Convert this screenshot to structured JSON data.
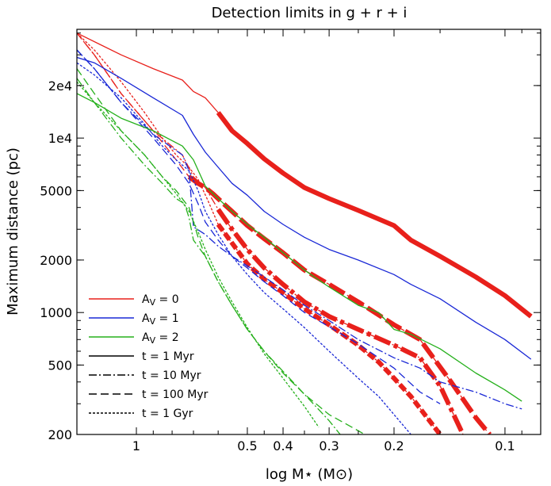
{
  "chart_data": {
    "type": "line",
    "title": "Detection limits in g + r + i",
    "xlabel": "log M⋆ (M⊙)",
    "ylabel": "Maximum distance (pc)",
    "xscale": "log",
    "xreversed": true,
    "yscale": "log",
    "xlim": [
      1.45,
      0.08
    ],
    "ylim": [
      200,
      42000
    ],
    "xticks": [
      {
        "value": 1.0,
        "label": "1"
      },
      {
        "value": 0.5,
        "label": "0.5"
      },
      {
        "value": 0.4,
        "label": "0.4"
      },
      {
        "value": 0.3,
        "label": "0.3"
      },
      {
        "value": 0.2,
        "label": "0.2"
      },
      {
        "value": 0.1,
        "label": "0.1"
      }
    ],
    "xminor": [
      0.9,
      0.8,
      0.7,
      0.6,
      0.45,
      0.35,
      0.25,
      0.15,
      0.09
    ],
    "yticks": [
      {
        "value": 200,
        "label": "200"
      },
      {
        "value": 500,
        "label": "500"
      },
      {
        "value": 1000,
        "label": "1000"
      },
      {
        "value": 2000,
        "label": "2000"
      },
      {
        "value": 5000,
        "label": "5000"
      },
      {
        "value": 10000,
        "label": "1e4"
      },
      {
        "value": 20000,
        "label": "2e4"
      }
    ],
    "legend_position": "bottom-left",
    "legend": [
      {
        "label": "A_V = 0",
        "color": "#e8201b",
        "style": "solid"
      },
      {
        "label": "A_V = 1",
        "color": "#1a28d6",
        "style": "solid"
      },
      {
        "label": "A_V = 2",
        "color": "#26b01c",
        "style": "solid"
      },
      {
        "label": "t = 1 Myr",
        "color": "#000000",
        "style": "solid"
      },
      {
        "label": "t = 10 Myr",
        "color": "#000000",
        "style": "dashdot"
      },
      {
        "label": "t = 100 Myr",
        "color": "#000000",
        "style": "dashed"
      },
      {
        "label": "t = 1 Gyr",
        "color": "#000000",
        "style": "dotted"
      }
    ],
    "series": [
      {
        "av": 0,
        "age": "1 Myr",
        "color": "#e8201b",
        "style": "solid",
        "x": [
          1.45,
          1.1,
          0.9,
          0.75,
          0.7,
          0.65,
          0.6,
          0.55,
          0.5,
          0.45,
          0.4,
          0.35,
          0.3,
          0.25,
          0.2,
          0.18,
          0.15,
          0.12,
          0.1,
          0.085
        ],
        "y": [
          40000,
          30000,
          25000,
          21500,
          18500,
          17000,
          14000,
          11000,
          9300,
          7600,
          6300,
          5200,
          4500,
          3850,
          3150,
          2600,
          2100,
          1600,
          1250,
          950
        ],
        "thick_from": 0.62
      },
      {
        "av": 0,
        "age": "10 Myr",
        "color": "#e8201b",
        "style": "dashdot",
        "x": [
          1.45,
          1.3,
          1.1,
          0.9,
          0.75,
          0.7,
          0.65,
          0.6,
          0.55,
          0.5,
          0.45,
          0.4,
          0.35,
          0.3,
          0.25,
          0.2,
          0.17,
          0.15,
          0.13
        ],
        "y": [
          40000,
          30000,
          18000,
          11000,
          8000,
          6000,
          5200,
          3900,
          3000,
          2300,
          1800,
          1450,
          1150,
          950,
          800,
          650,
          550,
          380,
          200
        ],
        "thick_from": 0.6
      },
      {
        "av": 0,
        "age": "100 Myr",
        "color": "#e8201b",
        "style": "dashed",
        "x": [
          1.45,
          1.3,
          1.1,
          0.9,
          0.78,
          0.72,
          0.68,
          0.65,
          0.62,
          0.58,
          0.55,
          0.5,
          0.45,
          0.4,
          0.35,
          0.3,
          0.25,
          0.2,
          0.17,
          0.14,
          0.12,
          0.11
        ],
        "y": [
          40000,
          30000,
          18000,
          11000,
          7500,
          6000,
          5500,
          5200,
          4800,
          4200,
          3800,
          3150,
          2650,
          2200,
          1750,
          1450,
          1150,
          850,
          700,
          400,
          250,
          200
        ],
        "thick_from": 0.72
      },
      {
        "av": 0,
        "age": "1 Gyr",
        "color": "#e8201b",
        "style": "dotted",
        "x": [
          1.45,
          1.3,
          1.1,
          0.95,
          0.85,
          0.78,
          0.72,
          0.68,
          0.64,
          0.6,
          0.55,
          0.5,
          0.45,
          0.4,
          0.35,
          0.3,
          0.25,
          0.22,
          0.2,
          0.18,
          0.165,
          0.15
        ],
        "y": [
          40000,
          32000,
          21000,
          14000,
          10000,
          8000,
          6800,
          5800,
          4400,
          3200,
          2500,
          1900,
          1550,
          1300,
          1050,
          850,
          650,
          520,
          420,
          330,
          260,
          200
        ],
        "thick_from": 0.62
      },
      {
        "av": 1,
        "age": "1 Myr",
        "color": "#1a28d6",
        "style": "solid",
        "x": [
          1.45,
          1.3,
          1.1,
          0.9,
          0.75,
          0.7,
          0.65,
          0.6,
          0.55,
          0.5,
          0.45,
          0.4,
          0.35,
          0.3,
          0.25,
          0.2,
          0.18,
          0.15,
          0.12,
          0.1,
          0.085
        ],
        "y": [
          29000,
          27000,
          22000,
          17000,
          13500,
          10500,
          8300,
          6800,
          5500,
          4700,
          3800,
          3200,
          2700,
          2300,
          2000,
          1650,
          1450,
          1200,
          880,
          700,
          540
        ]
      },
      {
        "av": 1,
        "age": "10 Myr",
        "color": "#1a28d6",
        "style": "dashdot",
        "x": [
          1.45,
          1.3,
          1.1,
          0.9,
          0.75,
          0.72,
          0.7,
          0.65,
          0.6,
          0.55,
          0.5,
          0.45,
          0.4,
          0.35,
          0.3,
          0.25,
          0.2,
          0.17,
          0.15,
          0.12,
          0.1,
          0.09
        ],
        "y": [
          32000,
          25000,
          16000,
          10500,
          8000,
          6500,
          3100,
          2800,
          2400,
          2100,
          1850,
          1600,
          1350,
          1100,
          900,
          700,
          550,
          480,
          400,
          350,
          300,
          280
        ]
      },
      {
        "av": 1,
        "age": "100 Myr",
        "color": "#1a28d6",
        "style": "dashed",
        "x": [
          1.45,
          1.3,
          1.1,
          0.9,
          0.78,
          0.72,
          0.68,
          0.65,
          0.6,
          0.55,
          0.5,
          0.45,
          0.4,
          0.35,
          0.3,
          0.25,
          0.2,
          0.17,
          0.15
        ],
        "y": [
          32000,
          25000,
          16000,
          10000,
          7000,
          5500,
          4200,
          3300,
          2600,
          2100,
          1800,
          1500,
          1250,
          1000,
          830,
          660,
          480,
          350,
          300
        ]
      },
      {
        "av": 1,
        "age": "1 Gyr",
        "color": "#1a28d6",
        "style": "dotted",
        "x": [
          1.45,
          1.3,
          1.1,
          0.95,
          0.85,
          0.78,
          0.72,
          0.68,
          0.65,
          0.6,
          0.55,
          0.5,
          0.45,
          0.4,
          0.35,
          0.3,
          0.25,
          0.22,
          0.2,
          0.18
        ],
        "y": [
          27000,
          23000,
          17000,
          12000,
          9000,
          7500,
          6500,
          5000,
          3800,
          2800,
          2100,
          1650,
          1300,
          1050,
          820,
          600,
          420,
          330,
          260,
          200
        ]
      },
      {
        "av": 2,
        "age": "1 Myr",
        "color": "#26b01c",
        "style": "solid",
        "x": [
          1.45,
          1.3,
          1.1,
          0.9,
          0.75,
          0.7,
          0.65,
          0.6,
          0.55,
          0.5,
          0.45,
          0.4,
          0.35,
          0.3,
          0.25,
          0.22,
          0.2,
          0.18,
          0.15,
          0.12,
          0.1,
          0.09
        ],
        "y": [
          18000,
          16000,
          13000,
          11000,
          9000,
          7500,
          5300,
          4500,
          3800,
          3200,
          2700,
          2200,
          1750,
          1400,
          1100,
          1000,
          800,
          750,
          620,
          450,
          360,
          310
        ]
      },
      {
        "av": 2,
        "age": "10 Myr",
        "color": "#26b01c",
        "style": "dashdot",
        "x": [
          1.45,
          1.3,
          1.1,
          0.95,
          0.85,
          0.78,
          0.74,
          0.72,
          0.7,
          0.65,
          0.6,
          0.55,
          0.5,
          0.45,
          0.4,
          0.35,
          0.3,
          0.28
        ],
        "y": [
          22000,
          16000,
          10000,
          7000,
          5500,
          4500,
          4200,
          3500,
          2600,
          2100,
          1500,
          1100,
          800,
          600,
          460,
          340,
          240,
          200
        ]
      },
      {
        "av": 2,
        "age": "100 Myr",
        "color": "#26b01c",
        "style": "dashed",
        "x": [
          1.45,
          1.3,
          1.1,
          0.95,
          0.85,
          0.78,
          0.72,
          0.68,
          0.65,
          0.6,
          0.55,
          0.5,
          0.45,
          0.4,
          0.35,
          0.3,
          0.26,
          0.24
        ],
        "y": [
          25000,
          18000,
          11000,
          8000,
          6000,
          5000,
          4000,
          2700,
          2100,
          1500,
          1100,
          800,
          600,
          450,
          340,
          260,
          220,
          200
        ]
      },
      {
        "av": 2,
        "age": "1 Gyr",
        "color": "#26b01c",
        "style": "dotted",
        "x": [
          1.45,
          1.3,
          1.1,
          0.95,
          0.85,
          0.78,
          0.72,
          0.68,
          0.65,
          0.6,
          0.55,
          0.5,
          0.45,
          0.4,
          0.35,
          0.32
        ],
        "y": [
          21000,
          16000,
          11000,
          8000,
          6000,
          4800,
          3800,
          2900,
          2300,
          1600,
          1150,
          820,
          580,
          420,
          290,
          220
        ]
      }
    ]
  }
}
